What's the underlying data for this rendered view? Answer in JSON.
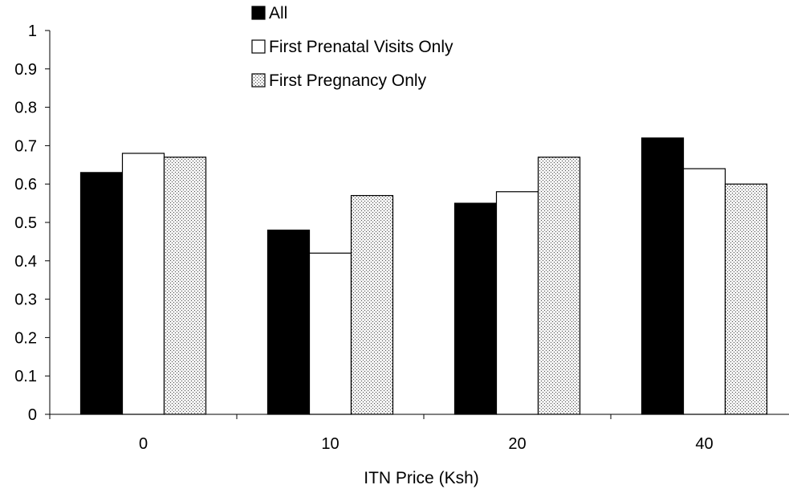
{
  "chart_data": {
    "type": "bar",
    "xlabel": "ITN Price (Ksh)",
    "ylabel": "",
    "title": "",
    "categories": [
      "0",
      "10",
      "20",
      "40"
    ],
    "ylim": [
      0,
      1
    ],
    "yticks": [
      "0",
      "0.1",
      "0.2",
      "0.3",
      "0.4",
      "0.5",
      "0.6",
      "0.7",
      "0.8",
      "0.9",
      "1"
    ],
    "grid": false,
    "legend_position": "top-center",
    "series": [
      {
        "name": "All",
        "values": [
          0.63,
          0.48,
          0.55,
          0.72
        ],
        "fill": "#000000",
        "pattern": "solid"
      },
      {
        "name": "First Prenatal Visits Only",
        "values": [
          0.68,
          0.42,
          0.58,
          0.64
        ],
        "fill": "#ffffff",
        "pattern": "none"
      },
      {
        "name": "First Pregnancy Only",
        "values": [
          0.67,
          0.57,
          0.67,
          0.6
        ],
        "fill": "#d9d9d9",
        "pattern": "dotted"
      }
    ]
  }
}
